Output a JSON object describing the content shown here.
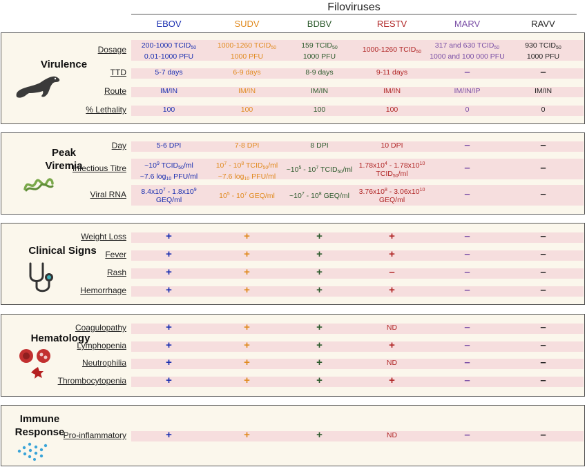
{
  "header": {
    "title": "Filoviruses"
  },
  "viruses": [
    {
      "name": "EBOV",
      "color": "#1a2fb0"
    },
    {
      "name": "SUDV",
      "color": "#e08a1e"
    },
    {
      "name": "BDBV",
      "color": "#2c5a2c"
    },
    {
      "name": "RESTV",
      "color": "#b02525"
    },
    {
      "name": "MARV",
      "color": "#7a4fa6"
    },
    {
      "name": "RAVV",
      "color": "#222222"
    }
  ],
  "sections": {
    "virulence": {
      "title": "Virulence",
      "icon": "ferret-icon",
      "rows": [
        {
          "label": "Dosage",
          "cells": [
            "200-1000 TCID<sub>50</sub><br>0.01-1000 PFU",
            "1000-1260 TCID<sub>50</sub><br>1000 PFU",
            "159 TCID<sub>50</sub><br>1000 PFU",
            "1000-1260 TCID<sub>50</sub>",
            "317 and 630 TCID<sub>50</sub><br>1000 and 100 000 PFU",
            "930 TCID<sub>50</sub><br>1000 PFU"
          ]
        },
        {
          "label": "TTD",
          "cells": [
            "5-7 days",
            "6-9 days",
            "8-9 days",
            "9-11 days",
            "–",
            "–"
          ]
        },
        {
          "label": "Route",
          "cells": [
            "IM/IN",
            "IM/IN",
            "IM/IN",
            "IM/IN",
            "IM/IN/IP",
            "IM/IN"
          ]
        },
        {
          "label": "% Lethality",
          "cells": [
            "100",
            "100",
            "100",
            "100",
            "0",
            "0"
          ]
        }
      ]
    },
    "viremia": {
      "title": "Peak Viremia",
      "title_lines": [
        "Peak",
        "Viremia"
      ],
      "icon": "virus-strand-icon",
      "rows": [
        {
          "label": "Day",
          "cells": [
            "5-6 DPI",
            "7-8 DPI",
            "8 DPI",
            "10 DPI",
            "–",
            "–"
          ]
        },
        {
          "label": "Infectious Titre",
          "cells": [
            "~10<sup>9</sup> TCID<sub>50</sub>/ml<br>~7.6 log<sub>10</sub> PFU/ml",
            "10<sup>7</sup> - 10<sup>8</sup> TCID<sub>50</sub>/ml<br>~7.6 log<sub>10</sub> PFU/ml",
            "~10<sup>5</sup> - 10<sup>7</sup> TCID<sub>50</sub>/ml",
            "1.78x10<sup>4</sup> - 1.78x10<sup>10</sup><br>TCID<sub>50</sub>/ml",
            "–",
            "–"
          ]
        },
        {
          "label": "Viral RNA",
          "cells": [
            "8.4x10<sup>7</sup> - 1.8x10<sup>9</sup><br>GEQ/ml",
            "10<sup>5</sup> - 10<sup>7</sup> GEQ/ml",
            "~10<sup>7</sup> - 10<sup>8</sup> GEQ/ml",
            "3.76x10<sup>8</sup> - 3.06x10<sup>10</sup><br>GEQ/ml",
            "–",
            "–"
          ]
        }
      ]
    },
    "clinical": {
      "title": "Clinical Signs",
      "icon": "stethoscope-icon",
      "rows": [
        {
          "label": "Weight Loss",
          "cells": [
            "+",
            "+",
            "+",
            "+",
            "–",
            "–"
          ]
        },
        {
          "label": "Fever",
          "cells": [
            "+",
            "+",
            "+",
            "+",
            "–",
            "–"
          ]
        },
        {
          "label": "Rash",
          "cells": [
            "+",
            "+",
            "+",
            "–",
            "–",
            "–"
          ]
        },
        {
          "label": "Hemorrhage",
          "cells": [
            "+",
            "+",
            "+",
            "+",
            "–",
            "–"
          ]
        }
      ]
    },
    "hematology": {
      "title": "Hematology",
      "icon": "blood-cells-icon",
      "rows": [
        {
          "label": "Coagulopathy",
          "cells": [
            "+",
            "+",
            "+",
            "ND",
            "–",
            "–"
          ]
        },
        {
          "label": "Lymphopenia",
          "cells": [
            "+",
            "+",
            "+",
            "+",
            "–",
            "–"
          ]
        },
        {
          "label": "Neutrophilia",
          "cells": [
            "+",
            "+",
            "+",
            "ND",
            "–",
            "–"
          ]
        },
        {
          "label": "Thrombocytopenia",
          "cells": [
            "+",
            "+",
            "+",
            "+",
            "–",
            "–"
          ]
        }
      ]
    },
    "immune": {
      "title": "Immune Response",
      "title_lines": [
        "Immune",
        "Response"
      ],
      "icon": "cytokines-icon",
      "rows": [
        {
          "label": "Pro-inflammatory",
          "cells": [
            "+",
            "+",
            "+",
            "ND",
            "–",
            "–"
          ]
        }
      ]
    }
  }
}
